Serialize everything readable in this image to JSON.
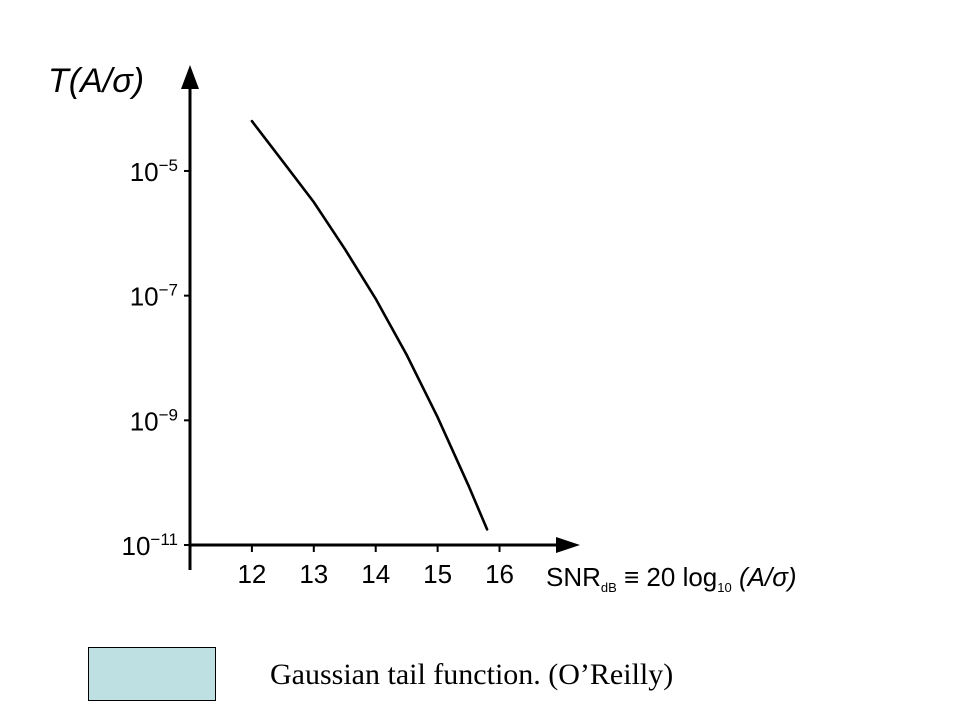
{
  "chart_data": {
    "type": "line",
    "ylabel": "T(A/σ)",
    "xlabel": "SNR",
    "xlabel_sub": "dB",
    "xlabel_rest": " ≡ 20 log",
    "xlabel_log_sub": "10",
    "xlabel_tail": " (A/σ)",
    "x_ticks": [
      12,
      13,
      14,
      15,
      16
    ],
    "y_ticks": [
      {
        "base": "10",
        "exp": "−5",
        "value": -5
      },
      {
        "base": "10",
        "exp": "−7",
        "value": -7
      },
      {
        "base": "10",
        "exp": "−9",
        "value": -9
      },
      {
        "base": "10",
        "exp": "−11",
        "value": -11
      }
    ],
    "y_scale": "log",
    "xlim": [
      11,
      17.3
    ],
    "ylim": [
      -11,
      -3.3
    ],
    "series": [
      {
        "x": [
          12.0,
          12.5,
          13.0,
          13.5,
          14.0,
          14.5,
          15.0,
          15.5,
          15.8
        ],
        "log10_y": [
          -4.2,
          -4.85,
          -5.5,
          -6.25,
          -7.05,
          -7.95,
          -8.95,
          -10.05,
          -10.75
        ]
      }
    ],
    "grid": false,
    "legend": false
  },
  "caption": {
    "text": "Gaussian tail function.  (O’Reilly)",
    "box_color": "#bfe0e3"
  }
}
